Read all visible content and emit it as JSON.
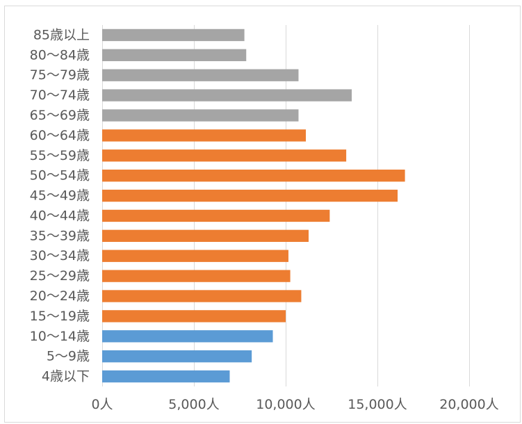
{
  "chart_data": {
    "type": "bar",
    "orientation": "horizontal",
    "categories": [
      "85歳以上",
      "80〜84歳",
      "75〜79歳",
      "70〜74歳",
      "65〜69歳",
      "60〜64歳",
      "55〜59歳",
      "50〜54歳",
      "45〜49歳",
      "40〜44歳",
      "35〜39歳",
      "30〜34歳",
      "25〜29歳",
      "20〜24歳",
      "15〜19歳",
      "10〜14歳",
      "5〜9歳",
      "4歳以下"
    ],
    "values": [
      7750,
      7850,
      10700,
      13600,
      10700,
      11100,
      13300,
      16500,
      16100,
      12400,
      11250,
      10150,
      10250,
      10850,
      10000,
      9300,
      8150,
      6950
    ],
    "bar_colors": [
      "#a5a5a5",
      "#a5a5a5",
      "#a5a5a5",
      "#a5a5a5",
      "#a5a5a5",
      "#ed7d31",
      "#ed7d31",
      "#ed7d31",
      "#ed7d31",
      "#ed7d31",
      "#ed7d31",
      "#ed7d31",
      "#ed7d31",
      "#ed7d31",
      "#ed7d31",
      "#5b9bd5",
      "#5b9bd5",
      "#5b9bd5"
    ],
    "xlim": [
      0,
      22500
    ],
    "xticks": [
      0,
      5000,
      10000,
      15000,
      20000
    ],
    "xtick_labels": [
      "0人",
      "5,000人",
      "10,000人",
      "15,000人",
      "20,000人"
    ],
    "grid": true,
    "legend": "none"
  }
}
